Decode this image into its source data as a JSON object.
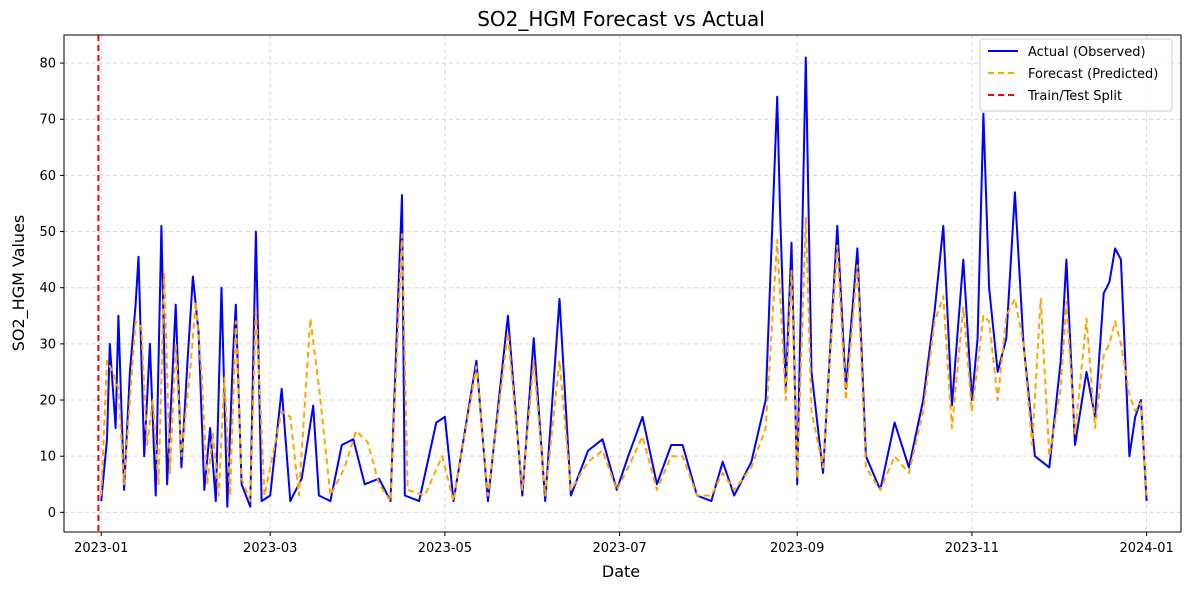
{
  "chart_data": {
    "type": "line",
    "title": "SO2_HGM Forecast vs Actual",
    "xlabel": "Date",
    "ylabel": "SO2_HGM Values",
    "x_ticks": [
      "2023-01",
      "2023-03",
      "2023-05",
      "2023-07",
      "2023-09",
      "2023-11",
      "2024-01"
    ],
    "x_tick_dates": [
      "2023-01-01",
      "2023-03-01",
      "2023-05-01",
      "2023-07-01",
      "2023-09-01",
      "2023-11-01",
      "2024-01-01"
    ],
    "y_ticks": [
      0,
      10,
      20,
      30,
      40,
      50,
      60,
      70,
      80
    ],
    "xlim": [
      "2022-12-19",
      "2024-01-13"
    ],
    "ylim": [
      -3.5,
      85
    ],
    "grid": true,
    "legend_position": "top-right",
    "split_line": {
      "name": "Train/Test Split",
      "date": "2022-12-31",
      "color": "#ff0000"
    },
    "series": [
      {
        "name": "Actual (Observed)",
        "color": "#0000ff",
        "style": "solid",
        "points": [
          [
            "2023-01-01",
            2
          ],
          [
            "2023-01-03",
            13
          ],
          [
            "2023-01-04",
            30
          ],
          [
            "2023-01-06",
            15
          ],
          [
            "2023-01-07",
            35
          ],
          [
            "2023-01-09",
            4
          ],
          [
            "2023-01-11",
            25
          ],
          [
            "2023-01-13",
            37
          ],
          [
            "2023-01-14",
            45.5
          ],
          [
            "2023-01-16",
            10
          ],
          [
            "2023-01-18",
            30
          ],
          [
            "2023-01-20",
            3
          ],
          [
            "2023-01-22",
            51
          ],
          [
            "2023-01-24",
            5
          ],
          [
            "2023-01-26",
            26
          ],
          [
            "2023-01-27",
            37
          ],
          [
            "2023-01-29",
            8
          ],
          [
            "2023-01-31",
            26
          ],
          [
            "2023-02-02",
            42
          ],
          [
            "2023-02-04",
            32
          ],
          [
            "2023-02-06",
            4
          ],
          [
            "2023-02-08",
            15
          ],
          [
            "2023-02-10",
            2
          ],
          [
            "2023-02-12",
            40
          ],
          [
            "2023-02-14",
            1
          ],
          [
            "2023-02-16",
            28
          ],
          [
            "2023-02-17",
            37
          ],
          [
            "2023-02-19",
            5
          ],
          [
            "2023-02-22",
            1
          ],
          [
            "2023-02-24",
            50
          ],
          [
            "2023-02-26",
            2
          ],
          [
            "2023-03-01",
            3
          ],
          [
            "2023-03-05",
            22
          ],
          [
            "2023-03-08",
            2
          ],
          [
            "2023-03-12",
            6
          ],
          [
            "2023-03-16",
            19
          ],
          [
            "2023-03-18",
            3
          ],
          [
            "2023-03-22",
            2
          ],
          [
            "2023-03-26",
            12
          ],
          [
            "2023-03-30",
            13
          ],
          [
            "2023-04-03",
            5
          ],
          [
            "2023-04-08",
            6
          ],
          [
            "2023-04-12",
            2
          ],
          [
            "2023-04-16",
            56.5
          ],
          [
            "2023-04-17",
            3
          ],
          [
            "2023-04-22",
            2
          ],
          [
            "2023-04-28",
            16
          ],
          [
            "2023-05-01",
            17
          ],
          [
            "2023-05-04",
            2
          ],
          [
            "2023-05-12",
            27
          ],
          [
            "2023-05-16",
            2
          ],
          [
            "2023-05-23",
            35
          ],
          [
            "2023-05-28",
            3
          ],
          [
            "2023-06-01",
            31
          ],
          [
            "2023-06-05",
            2
          ],
          [
            "2023-06-10",
            38
          ],
          [
            "2023-06-14",
            3
          ],
          [
            "2023-06-20",
            11
          ],
          [
            "2023-06-25",
            13
          ],
          [
            "2023-06-30",
            4
          ],
          [
            "2023-07-04",
            10
          ],
          [
            "2023-07-09",
            17
          ],
          [
            "2023-07-14",
            5
          ],
          [
            "2023-07-19",
            12
          ],
          [
            "2023-07-23",
            12
          ],
          [
            "2023-07-28",
            3
          ],
          [
            "2023-08-02",
            2
          ],
          [
            "2023-08-06",
            9
          ],
          [
            "2023-08-10",
            3
          ],
          [
            "2023-08-16",
            9
          ],
          [
            "2023-08-21",
            20
          ],
          [
            "2023-08-25",
            74
          ],
          [
            "2023-08-26",
            54
          ],
          [
            "2023-08-28",
            22
          ],
          [
            "2023-08-30",
            48
          ],
          [
            "2023-09-01",
            5
          ],
          [
            "2023-09-04",
            81
          ],
          [
            "2023-09-06",
            25
          ],
          [
            "2023-09-10",
            7
          ],
          [
            "2023-09-15",
            51
          ],
          [
            "2023-09-18",
            22
          ],
          [
            "2023-09-22",
            47
          ],
          [
            "2023-09-25",
            10
          ],
          [
            "2023-09-30",
            4
          ],
          [
            "2023-10-05",
            16
          ],
          [
            "2023-10-10",
            8
          ],
          [
            "2023-10-15",
            20
          ],
          [
            "2023-10-19",
            36
          ],
          [
            "2023-10-22",
            51
          ],
          [
            "2023-10-25",
            19
          ],
          [
            "2023-10-29",
            45
          ],
          [
            "2023-11-01",
            20
          ],
          [
            "2023-11-03",
            31
          ],
          [
            "2023-11-05",
            71
          ],
          [
            "2023-11-07",
            40
          ],
          [
            "2023-11-10",
            25
          ],
          [
            "2023-11-13",
            31
          ],
          [
            "2023-11-16",
            57
          ],
          [
            "2023-11-19",
            30
          ],
          [
            "2023-11-23",
            10
          ],
          [
            "2023-11-28",
            8
          ],
          [
            "2023-12-02",
            27
          ],
          [
            "2023-12-04",
            45
          ],
          [
            "2023-12-07",
            12
          ],
          [
            "2023-12-11",
            25
          ],
          [
            "2023-12-14",
            17
          ],
          [
            "2023-12-17",
            39
          ],
          [
            "2023-12-19",
            41
          ],
          [
            "2023-12-21",
            47
          ],
          [
            "2023-12-23",
            45
          ],
          [
            "2023-12-26",
            10
          ],
          [
            "2023-12-28",
            17
          ],
          [
            "2023-12-30",
            20
          ],
          [
            "2024-01-01",
            2
          ]
        ]
      },
      {
        "name": "Forecast (Predicted)",
        "color": "#ffa500",
        "style": "dashed",
        "points": [
          [
            "2023-01-01",
            3
          ],
          [
            "2023-01-03",
            27
          ],
          [
            "2023-01-05",
            25
          ],
          [
            "2023-01-07",
            22
          ],
          [
            "2023-01-09",
            5
          ],
          [
            "2023-01-11",
            20
          ],
          [
            "2023-01-13",
            34
          ],
          [
            "2023-01-15",
            33
          ],
          [
            "2023-01-17",
            12
          ],
          [
            "2023-01-19",
            20
          ],
          [
            "2023-01-21",
            5
          ],
          [
            "2023-01-23",
            42.5
          ],
          [
            "2023-01-25",
            7
          ],
          [
            "2023-01-27",
            30
          ],
          [
            "2023-01-29",
            10
          ],
          [
            "2023-02-01",
            25
          ],
          [
            "2023-02-03",
            37.5
          ],
          [
            "2023-02-05",
            25
          ],
          [
            "2023-02-07",
            5
          ],
          [
            "2023-02-09",
            14
          ],
          [
            "2023-02-11",
            3
          ],
          [
            "2023-02-13",
            24
          ],
          [
            "2023-02-15",
            3
          ],
          [
            "2023-02-17",
            34
          ],
          [
            "2023-02-19",
            6
          ],
          [
            "2023-02-22",
            2
          ],
          [
            "2023-02-24",
            36.5
          ],
          [
            "2023-02-27",
            3
          ],
          [
            "2023-03-05",
            18
          ],
          [
            "2023-03-08",
            17
          ],
          [
            "2023-03-11",
            3
          ],
          [
            "2023-03-15",
            34.5
          ],
          [
            "2023-03-18",
            22.5
          ],
          [
            "2023-03-22",
            3
          ],
          [
            "2023-03-27",
            8
          ],
          [
            "2023-03-31",
            14.5
          ],
          [
            "2023-04-04",
            12.5
          ],
          [
            "2023-04-08",
            5
          ],
          [
            "2023-04-12",
            2
          ],
          [
            "2023-04-16",
            49.5
          ],
          [
            "2023-04-18",
            4
          ],
          [
            "2023-04-24",
            3
          ],
          [
            "2023-04-30",
            10
          ],
          [
            "2023-05-04",
            2
          ],
          [
            "2023-05-12",
            26
          ],
          [
            "2023-05-16",
            3
          ],
          [
            "2023-05-23",
            32
          ],
          [
            "2023-05-28",
            4
          ],
          [
            "2023-06-01",
            27
          ],
          [
            "2023-06-05",
            3
          ],
          [
            "2023-06-10",
            27
          ],
          [
            "2023-06-14",
            4
          ],
          [
            "2023-06-20",
            9
          ],
          [
            "2023-06-25",
            11
          ],
          [
            "2023-06-30",
            4
          ],
          [
            "2023-07-04",
            8
          ],
          [
            "2023-07-09",
            13.5
          ],
          [
            "2023-07-14",
            4
          ],
          [
            "2023-07-19",
            10
          ],
          [
            "2023-07-23",
            10
          ],
          [
            "2023-07-28",
            3
          ],
          [
            "2023-08-02",
            3
          ],
          [
            "2023-08-06",
            7
          ],
          [
            "2023-08-10",
            4
          ],
          [
            "2023-08-16",
            8
          ],
          [
            "2023-08-21",
            15
          ],
          [
            "2023-08-25",
            48.5
          ],
          [
            "2023-08-28",
            20
          ],
          [
            "2023-08-30",
            43
          ],
          [
            "2023-09-01",
            6
          ],
          [
            "2023-09-04",
            52.5
          ],
          [
            "2023-09-06",
            18
          ],
          [
            "2023-09-10",
            8
          ],
          [
            "2023-09-15",
            47.5
          ],
          [
            "2023-09-18",
            20
          ],
          [
            "2023-09-22",
            44
          ],
          [
            "2023-09-25",
            8
          ],
          [
            "2023-09-30",
            4
          ],
          [
            "2023-10-05",
            10
          ],
          [
            "2023-10-10",
            7
          ],
          [
            "2023-10-15",
            18
          ],
          [
            "2023-10-19",
            34
          ],
          [
            "2023-10-22",
            38.5
          ],
          [
            "2023-10-25",
            15
          ],
          [
            "2023-10-29",
            36.5
          ],
          [
            "2023-11-01",
            18
          ],
          [
            "2023-11-03",
            26
          ],
          [
            "2023-11-05",
            35
          ],
          [
            "2023-11-07",
            34
          ],
          [
            "2023-11-10",
            20
          ],
          [
            "2023-11-13",
            35
          ],
          [
            "2023-11-16",
            38
          ],
          [
            "2023-11-19",
            30
          ],
          [
            "2023-11-22",
            12
          ],
          [
            "2023-11-25",
            38
          ],
          [
            "2023-11-28",
            10
          ],
          [
            "2023-12-02",
            22
          ],
          [
            "2023-12-04",
            37.5
          ],
          [
            "2023-12-07",
            14
          ],
          [
            "2023-12-11",
            34.5
          ],
          [
            "2023-12-14",
            15
          ],
          [
            "2023-12-17",
            28
          ],
          [
            "2023-12-19",
            30
          ],
          [
            "2023-12-21",
            34
          ],
          [
            "2023-12-23",
            30
          ],
          [
            "2023-12-26",
            21
          ],
          [
            "2023-12-28",
            18
          ],
          [
            "2023-12-30",
            19.5
          ],
          [
            "2024-01-01",
            3
          ]
        ]
      }
    ]
  }
}
